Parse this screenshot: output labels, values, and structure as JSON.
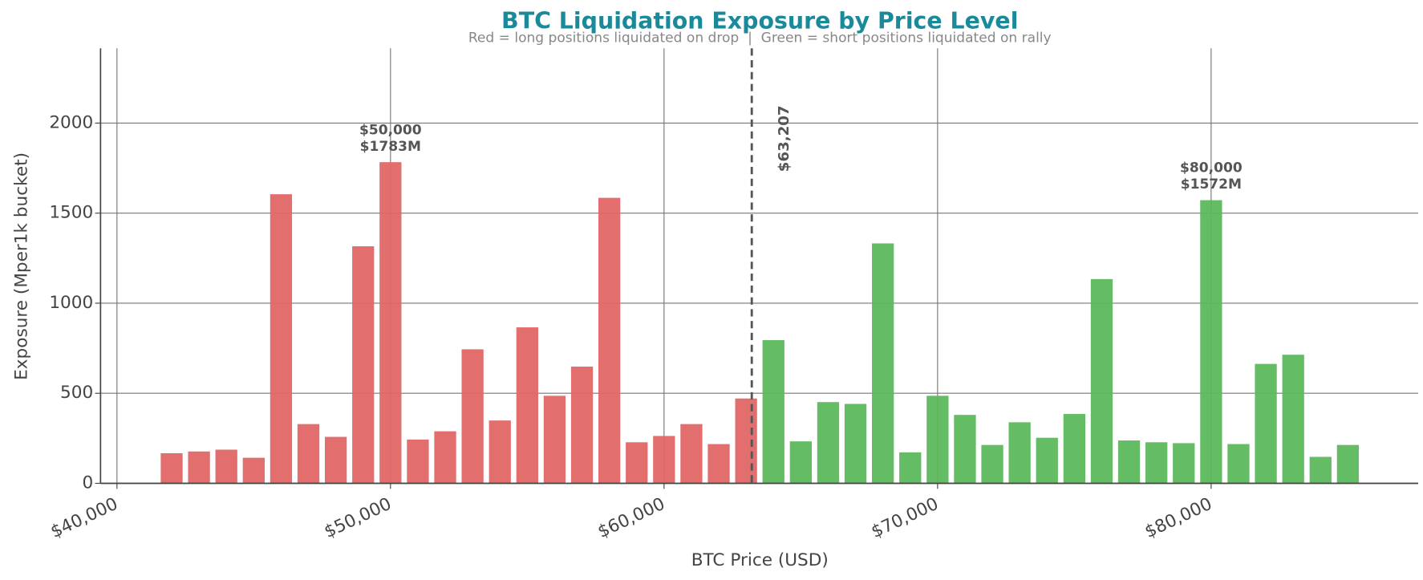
{
  "chart_data": {
    "type": "bar",
    "title": "BTC Liquidation Exposure by Price Level",
    "subtitle": "Red = long positions liquidated on drop  |  Green = short positions liquidated on rally",
    "x_label": "BTC Price (USD)",
    "y_label": "Exposure (Mper1k bucket)",
    "bar_width": 800,
    "series": [
      {
        "color": "#e06666",
        "x": [
          42000,
          43000,
          44000,
          45000,
          46000,
          47000,
          48000,
          49000,
          50000,
          51000,
          52000,
          53000,
          54000,
          55000,
          56000,
          57000,
          58000,
          59000,
          60000,
          61000,
          62000,
          63000
        ],
        "values": [
          167,
          177,
          187,
          142,
          1605,
          329,
          258,
          1316,
          1783,
          243,
          289,
          744,
          349,
          866,
          486,
          648,
          1585,
          228,
          263,
          329,
          218,
          471
        ]
      },
      {
        "color": "#5cb85c",
        "x": [
          64000,
          65000,
          66000,
          67000,
          68000,
          69000,
          70000,
          71000,
          72000,
          73000,
          74000,
          75000,
          76000,
          77000,
          78000,
          79000,
          80000,
          81000,
          82000,
          83000,
          84000,
          85000
        ],
        "values": [
          795,
          233,
          451,
          441,
          1332,
          172,
          486,
          380,
          213,
          339,
          253,
          385,
          1134,
          238,
          228,
          223,
          1572,
          218,
          663,
          714,
          147,
          213
        ]
      }
    ],
    "current_price": 63207,
    "current_price_label": "$63,207",
    "annotations": [
      {
        "x": 50000,
        "y": 1783,
        "lines": [
          "$50,000",
          "$1783M"
        ]
      },
      {
        "x": 80000,
        "y": 1572,
        "lines": [
          "$80,000",
          "$1572M"
        ]
      }
    ],
    "xlim": [
      39400,
      87570
    ],
    "ylim": [
      0,
      2415
    ],
    "xticks": [
      {
        "value": 40000,
        "label": "$40,000"
      },
      {
        "value": 50000,
        "label": "$50,000"
      },
      {
        "value": 60000,
        "label": "$60,000"
      },
      {
        "value": 70000,
        "label": "$70,000"
      },
      {
        "value": 80000,
        "label": "$80,000"
      }
    ],
    "yticks": [
      0,
      500,
      1000,
      1500,
      2000
    ],
    "grid": true
  }
}
